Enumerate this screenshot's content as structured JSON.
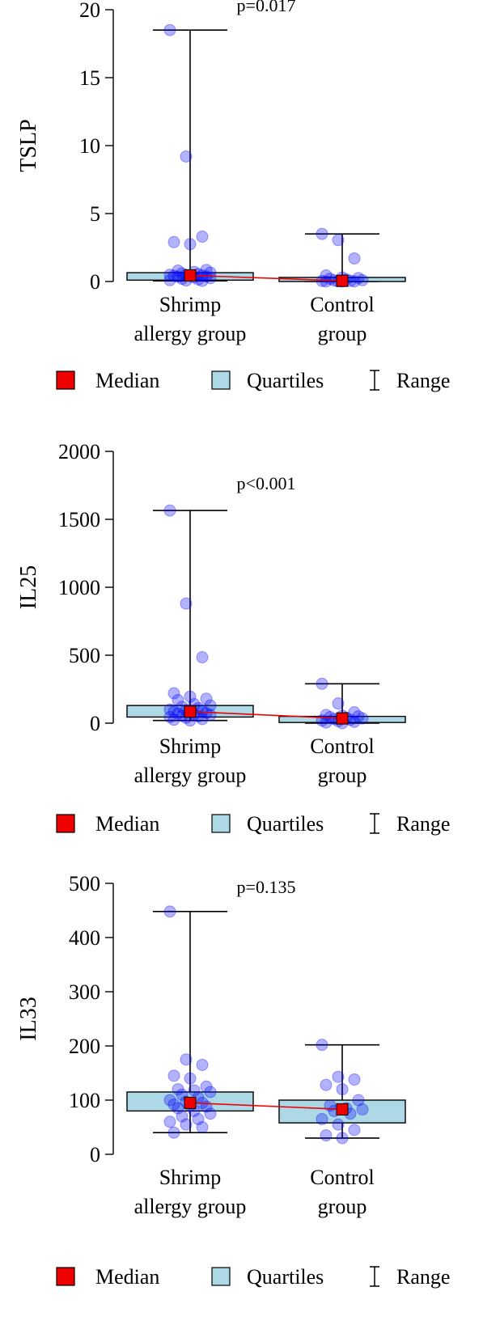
{
  "legend": {
    "median_label": "Median",
    "quartiles_label": "Quartiles",
    "range_label": "Range",
    "colors": {
      "median": "#ee0000",
      "quartiles": "#add8e6",
      "points": "#0000ff"
    }
  },
  "chart_data": [
    {
      "type": "box",
      "ylabel": "TSLP",
      "ylim": [
        0,
        20
      ],
      "yticks": [
        0,
        5,
        10,
        15,
        20
      ],
      "pvalue": "p=0.017",
      "categories": [
        {
          "label_lines": [
            "Shrimp",
            "allergy group"
          ],
          "min": 0.05,
          "q1": 0.1,
          "median": 0.45,
          "q3": 0.65,
          "max": 18.5,
          "points": [
            18.5,
            9.2,
            3.3,
            2.9,
            2.75,
            0.85,
            0.8,
            0.7,
            0.65,
            0.6,
            0.55,
            0.5,
            0.48,
            0.45,
            0.42,
            0.4,
            0.38,
            0.35,
            0.3,
            0.25,
            0.2,
            0.15,
            0.1,
            0.08,
            0.05
          ]
        },
        {
          "label_lines": [
            "Control",
            "group"
          ],
          "min": 0.0,
          "q1": 0.0,
          "median": 0.05,
          "q3": 0.3,
          "max": 3.5,
          "points": [
            3.5,
            3.05,
            1.7,
            0.45,
            0.3,
            0.25,
            0.2,
            0.15,
            0.1,
            0.08,
            0.05,
            0.04,
            0.02,
            0.01,
            0.0,
            0.0
          ]
        }
      ]
    },
    {
      "type": "box",
      "ylabel": "IL25",
      "ylim": [
        0,
        2000
      ],
      "yticks": [
        0,
        500,
        1000,
        1500,
        2000
      ],
      "pvalue": "p<0.001",
      "categories": [
        {
          "label_lines": [
            "Shrimp",
            "allergy group"
          ],
          "min": 20,
          "q1": 45,
          "median": 85,
          "q3": 130,
          "max": 1565,
          "points": [
            1565,
            880,
            485,
            220,
            195,
            180,
            170,
            140,
            130,
            120,
            110,
            100,
            95,
            90,
            85,
            80,
            75,
            70,
            65,
            60,
            55,
            50,
            45,
            40,
            30,
            25,
            20
          ]
        },
        {
          "label_lines": [
            "Control",
            "group"
          ],
          "min": 0,
          "q1": 5,
          "median": 35,
          "q3": 50,
          "max": 290,
          "points": [
            290,
            145,
            80,
            60,
            55,
            50,
            45,
            40,
            35,
            30,
            25,
            20,
            15,
            10,
            5,
            0
          ]
        }
      ]
    },
    {
      "type": "box",
      "ylabel": "IL33",
      "ylim": [
        0,
        500
      ],
      "yticks": [
        0,
        100,
        200,
        300,
        400,
        500
      ],
      "pvalue": "p=0.135",
      "categories": [
        {
          "label_lines": [
            "Shrimp",
            "allergy group"
          ],
          "min": 40,
          "q1": 80,
          "median": 95,
          "q3": 115,
          "max": 448,
          "points": [
            448,
            175,
            165,
            145,
            140,
            125,
            120,
            118,
            115,
            110,
            105,
            100,
            97,
            95,
            92,
            90,
            88,
            85,
            80,
            75,
            70,
            65,
            60,
            55,
            50,
            40
          ]
        },
        {
          "label_lines": [
            "Control",
            "group"
          ],
          "min": 30,
          "q1": 58,
          "median": 83,
          "q3": 100,
          "max": 202,
          "points": [
            202,
            143,
            138,
            128,
            120,
            100,
            90,
            85,
            83,
            80,
            75,
            65,
            55,
            45,
            35,
            30
          ]
        }
      ]
    }
  ]
}
